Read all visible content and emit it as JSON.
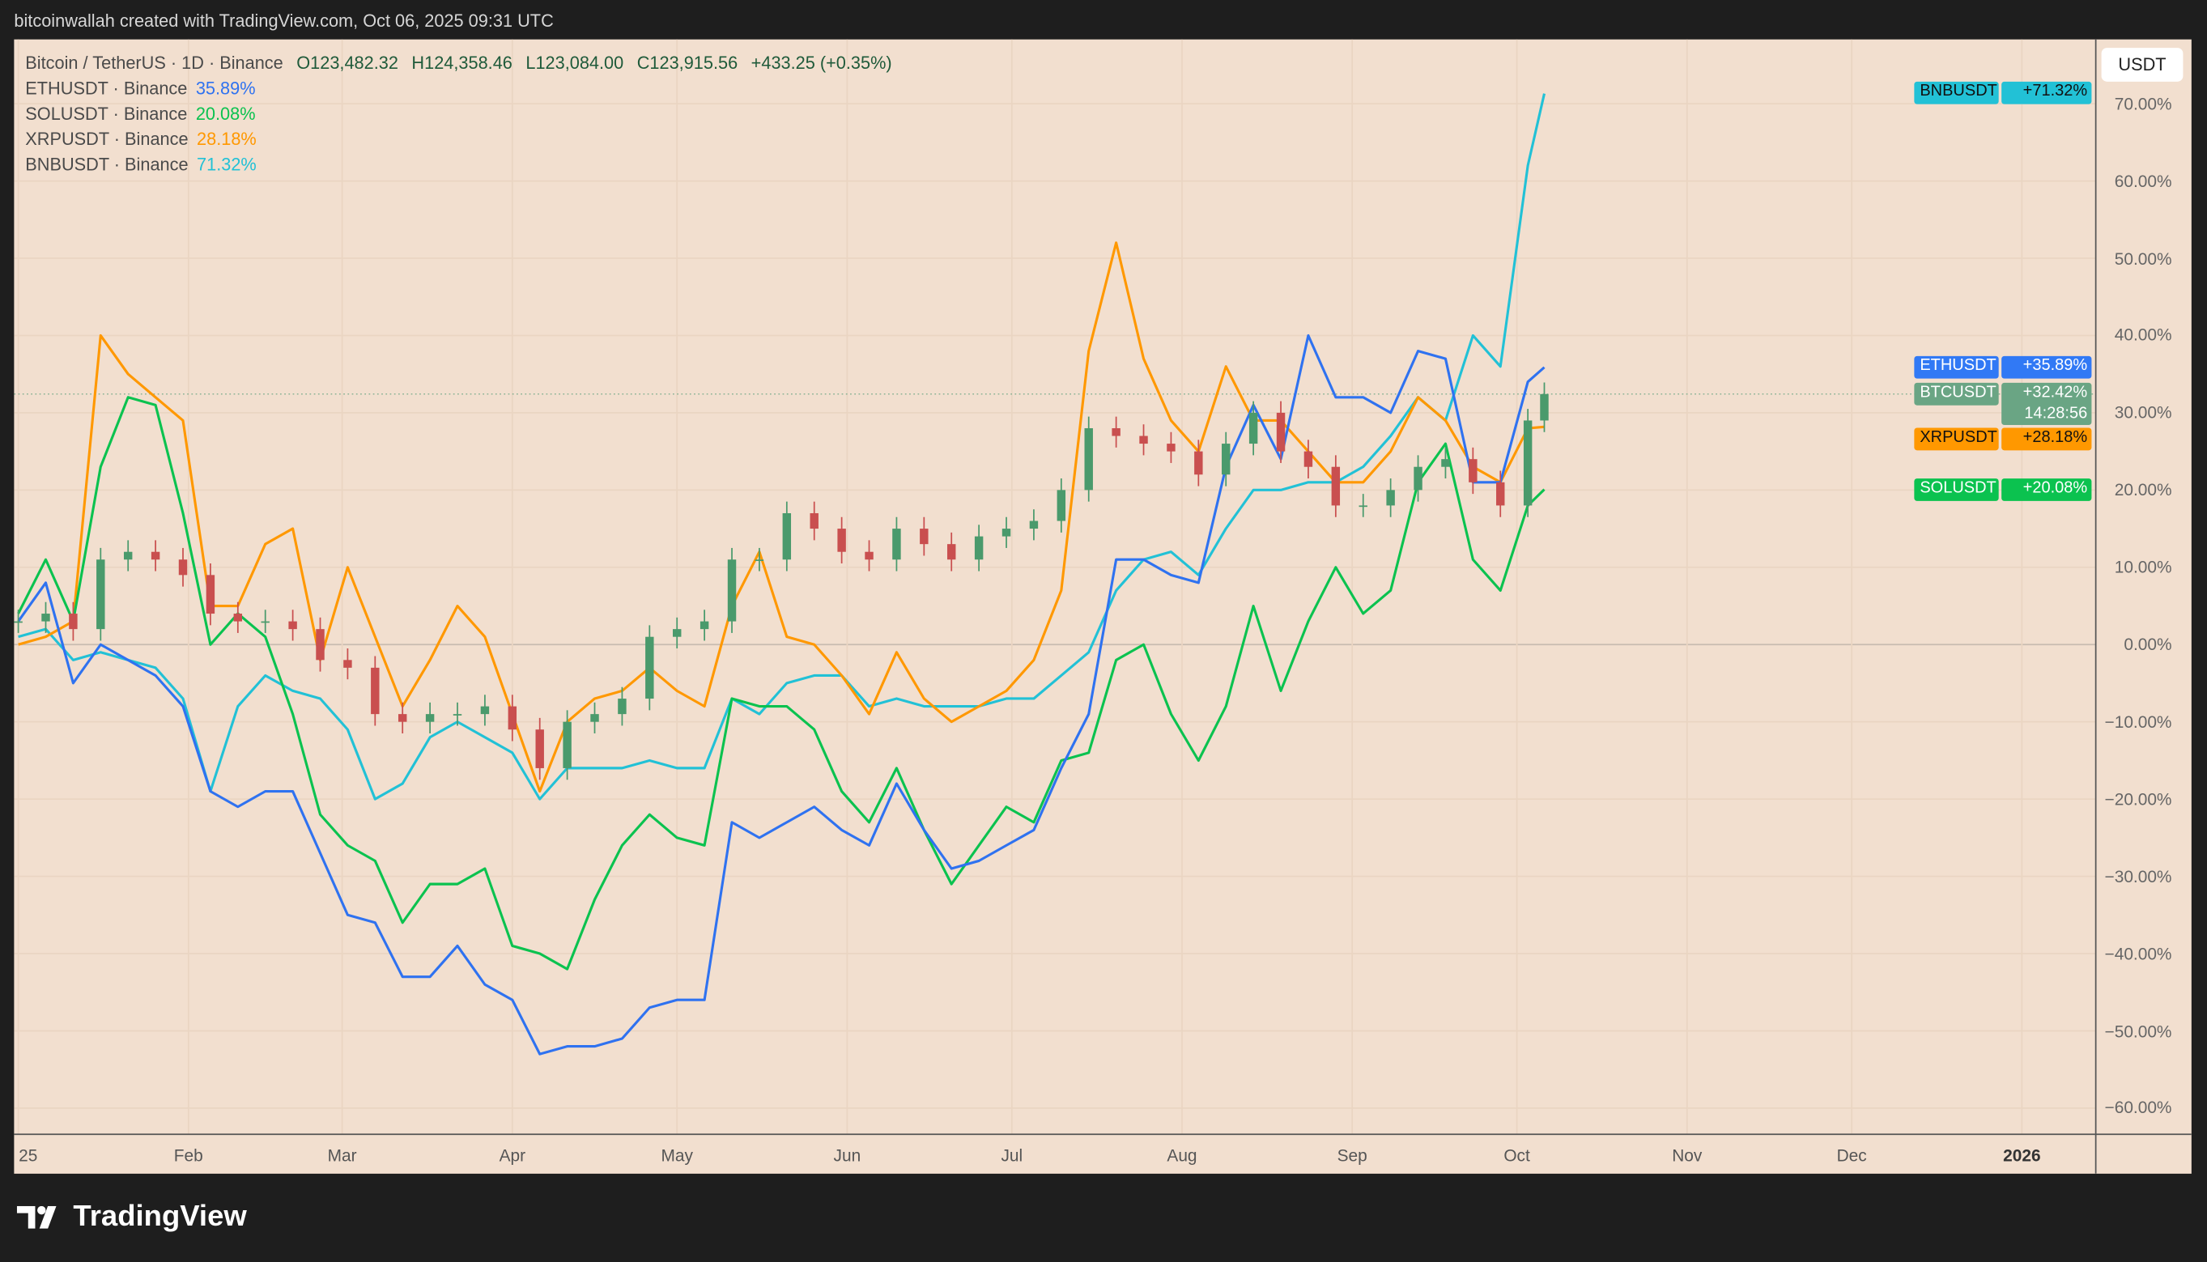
{
  "header": {
    "attribution": "bitcoinwallah created with TradingView.com, Oct 06, 2025 09:31 UTC"
  },
  "legend": {
    "main": {
      "symbol": "Bitcoin / TetherUS · 1D · Binance",
      "open": "O123,482.32",
      "high": "H124,358.46",
      "low": "L123,084.00",
      "close": "C123,915.56",
      "change": "+433.25 (+0.35%)"
    },
    "items": [
      {
        "label": "ETHUSDT · Binance",
        "value": "35.89%",
        "color": "#2f72f0"
      },
      {
        "label": "SOLUSDT · Binance",
        "value": "20.08%",
        "color": "#0bc24f"
      },
      {
        "label": "XRPUSDT · Binance",
        "value": "28.18%",
        "color": "#ff9800"
      },
      {
        "label": "BNBUSDT · Binance",
        "value": "71.32%",
        "color": "#22c1d6"
      }
    ]
  },
  "currency_button": "USDT",
  "price_tags": [
    {
      "name": "BNBUSDT",
      "value": "+71.32%",
      "color": "#22c1d6",
      "text_color": "#111",
      "pct": 71.32
    },
    {
      "name": "ETHUSDT",
      "value": "+35.89%",
      "color": "#3179f5",
      "text_color": "#fff",
      "pct": 35.89
    },
    {
      "name": "BTCUSDT",
      "value": "+32.42%",
      "countdown": "14:28:56",
      "color": "#6aa584",
      "text_color": "#fff",
      "pct": 32.42
    },
    {
      "name": "XRPUSDT",
      "value": "+28.18%",
      "color": "#ff9800",
      "text_color": "#111",
      "pct": 28.18
    },
    {
      "name": "SOLUSDT",
      "value": "+20.08%",
      "color": "#0bc24f",
      "text_color": "#fff",
      "pct": 20.08
    }
  ],
  "brand": "TradingView",
  "chart_data": {
    "type": "line",
    "title": "",
    "xlabel": "",
    "ylabel": "",
    "scale": "percent",
    "ylim": [
      -63,
      78
    ],
    "xlim": [
      "2024-12-31",
      "2026-01-20"
    ],
    "grid": true,
    "y_ticks": [
      "70.00%",
      "60.00%",
      "50.00%",
      "40.00%",
      "30.00%",
      "20.00%",
      "10.00%",
      "0.00%",
      "−10.00%",
      "−20.00%",
      "−30.00%",
      "−40.00%",
      "−50.00%",
      "−60.00%"
    ],
    "y_tick_values": [
      70,
      60,
      50,
      40,
      30,
      20,
      10,
      0,
      -10,
      -20,
      -30,
      -40,
      -50,
      -60
    ],
    "x_ticks": [
      {
        "label": "25",
        "date": "2025-01-01"
      },
      {
        "label": "Feb",
        "date": "2025-02-01"
      },
      {
        "label": "Mar",
        "date": "2025-03-01"
      },
      {
        "label": "Apr",
        "date": "2025-04-01"
      },
      {
        "label": "May",
        "date": "2025-05-01"
      },
      {
        "label": "Jun",
        "date": "2025-06-01"
      },
      {
        "label": "Jul",
        "date": "2025-07-01"
      },
      {
        "label": "Aug",
        "date": "2025-08-01"
      },
      {
        "label": "Sep",
        "date": "2025-09-01"
      },
      {
        "label": "Oct",
        "date": "2025-10-01"
      },
      {
        "label": "Nov",
        "date": "2025-11-01"
      },
      {
        "label": "Dec",
        "date": "2025-12-01"
      },
      {
        "label": "2026",
        "date": "2026-01-01",
        "bold": true
      }
    ],
    "dates": [
      "2025-01-01",
      "2025-01-06",
      "2025-01-11",
      "2025-01-16",
      "2025-01-21",
      "2025-01-26",
      "2025-01-31",
      "2025-02-05",
      "2025-02-10",
      "2025-02-15",
      "2025-02-20",
      "2025-02-25",
      "2025-03-02",
      "2025-03-07",
      "2025-03-12",
      "2025-03-17",
      "2025-03-22",
      "2025-03-27",
      "2025-04-01",
      "2025-04-06",
      "2025-04-11",
      "2025-04-16",
      "2025-04-21",
      "2025-04-26",
      "2025-05-01",
      "2025-05-06",
      "2025-05-11",
      "2025-05-16",
      "2025-05-21",
      "2025-05-26",
      "2025-05-31",
      "2025-06-05",
      "2025-06-10",
      "2025-06-15",
      "2025-06-20",
      "2025-06-25",
      "2025-06-30",
      "2025-07-05",
      "2025-07-10",
      "2025-07-15",
      "2025-07-20",
      "2025-07-25",
      "2025-07-30",
      "2025-08-04",
      "2025-08-09",
      "2025-08-14",
      "2025-08-19",
      "2025-08-24",
      "2025-08-29",
      "2025-09-03",
      "2025-09-08",
      "2025-09-13",
      "2025-09-18",
      "2025-09-23",
      "2025-09-28",
      "2025-10-03",
      "2025-10-06"
    ],
    "series": [
      {
        "name": "BNBUSDT",
        "color": "#22c1d6",
        "values": [
          1,
          2,
          -2,
          -1,
          -2,
          -3,
          -7,
          -19,
          -8,
          -4,
          -6,
          -7,
          -11,
          -20,
          -18,
          -12,
          -10,
          -12,
          -14,
          -20,
          -16,
          -16,
          -16,
          -15,
          -16,
          -16,
          -7,
          -9,
          -5,
          -4,
          -4,
          -8,
          -7,
          -8,
          -8,
          -8,
          -7,
          -7,
          -4,
          -1,
          7,
          11,
          12,
          9,
          15,
          20,
          20,
          21,
          21,
          23,
          27,
          32,
          29,
          40,
          36,
          62,
          71.32
        ]
      },
      {
        "name": "XRPUSDT",
        "color": "#ff9800",
        "values": [
          0,
          1,
          3,
          40,
          35,
          32,
          29,
          5,
          5,
          13,
          15,
          -2,
          10,
          1,
          -8,
          -2,
          5,
          1,
          -9,
          -19,
          -10,
          -7,
          -6,
          -3,
          -6,
          -8,
          5,
          12,
          1,
          0,
          -4,
          -9,
          -1,
          -7,
          -10,
          -8,
          -6,
          -2,
          7,
          38,
          52,
          37,
          29,
          25,
          36,
          29,
          29,
          25,
          21,
          21,
          25,
          32,
          29,
          23,
          21,
          28,
          28.18
        ]
      },
      {
        "name": "SOLUSDT",
        "color": "#0bc24f",
        "values": [
          4,
          11,
          3,
          23,
          32,
          31,
          17,
          0,
          4,
          1,
          -9,
          -22,
          -26,
          -28,
          -36,
          -31,
          -31,
          -29,
          -39,
          -40,
          -42,
          -33,
          -26,
          -22,
          -25,
          -26,
          -7,
          -8,
          -8,
          -11,
          -19,
          -23,
          -16,
          -24,
          -31,
          -26,
          -21,
          -23,
          -15,
          -14,
          -2,
          0,
          -9,
          -15,
          -8,
          5,
          -6,
          3,
          10,
          4,
          7,
          21,
          26,
          11,
          7,
          18,
          20.08
        ]
      },
      {
        "name": "ETHUSDT",
        "color": "#2f72f0",
        "values": [
          3,
          8,
          -5,
          0,
          -2,
          -4,
          -8,
          -19,
          -21,
          -19,
          -19,
          -27,
          -35,
          -36,
          -43,
          -43,
          -39,
          -44,
          -46,
          -53,
          -52,
          -52,
          -51,
          -47,
          -46,
          -46,
          -23,
          -25,
          -23,
          -21,
          -24,
          -26,
          -18,
          -24,
          -29,
          -28,
          -26,
          -24,
          -16,
          -9,
          11,
          11,
          9,
          8,
          23,
          31,
          24,
          40,
          32,
          32,
          30,
          38,
          37,
          21,
          21,
          34,
          35.89
        ]
      },
      {
        "name": "BTCUSDT",
        "type": "candlestick",
        "up_color": "#4a9a6c",
        "down_color": "#c94f4f",
        "values": [
          3,
          4,
          2,
          11,
          12,
          11,
          9,
          4,
          3,
          3,
          2,
          -2,
          -3,
          -9,
          -10,
          -9,
          -9,
          -8,
          -11,
          -16,
          -10,
          -9,
          -7,
          1,
          2,
          3,
          11,
          11,
          17,
          15,
          12,
          11,
          15,
          13,
          11,
          14,
          15,
          16,
          20,
          28,
          27,
          26,
          25,
          22,
          26,
          30,
          25,
          23,
          18,
          18,
          20,
          23,
          24,
          21,
          18,
          29,
          32.42
        ]
      }
    ]
  }
}
